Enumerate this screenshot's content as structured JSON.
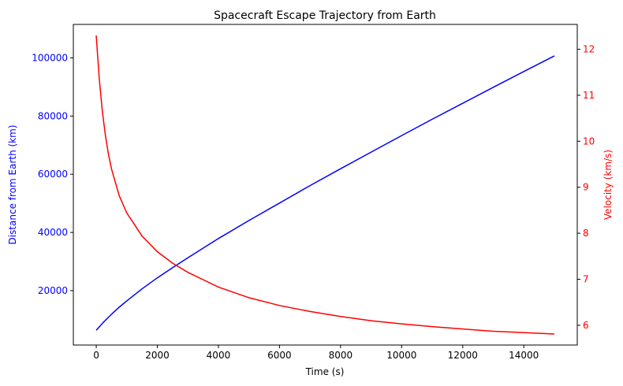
{
  "chart_data": {
    "type": "line",
    "title": "Spacecraft Escape Trajectory from Earth",
    "xlabel": "Time (s)",
    "xlim": [
      -750,
      15750
    ],
    "xticks": [
      0,
      2000,
      4000,
      6000,
      8000,
      10000,
      12000,
      14000
    ],
    "grid": false,
    "axes": {
      "left": {
        "label": "Distance from Earth (km)",
        "color": "#0000ff",
        "ylim": [
          1300,
          111500
        ],
        "ticks": [
          20000,
          40000,
          60000,
          80000,
          100000
        ]
      },
      "right": {
        "label": "Velocity (km/s)",
        "color": "#ff0000",
        "ylim": [
          5.57,
          12.54
        ],
        "ticks": [
          6,
          7,
          8,
          9,
          10,
          11,
          12
        ]
      }
    },
    "series": [
      {
        "axis": "left",
        "color": "#0000ff",
        "x": [
          0,
          250,
          500,
          750,
          1000,
          1500,
          2000,
          2500,
          3000,
          4000,
          5000,
          6000,
          7000,
          8000,
          9000,
          10000,
          11000,
          12000,
          13000,
          14000,
          15000
        ],
        "y": [
          6400,
          9300,
          11900,
          14300,
          16500,
          20600,
          24400,
          27900,
          31300,
          37900,
          44100,
          50100,
          56100,
          61900,
          67600,
          73300,
          78900,
          84400,
          89900,
          95300,
          100700
        ]
      },
      {
        "axis": "right",
        "color": "#ff0000",
        "x": [
          0,
          100,
          200,
          300,
          400,
          500,
          750,
          1000,
          1500,
          2000,
          2500,
          3000,
          4000,
          5000,
          6000,
          7000,
          8000,
          9000,
          10000,
          11000,
          12000,
          13000,
          14000,
          15000
        ],
        "y": [
          12.3,
          11.35,
          10.65,
          10.12,
          9.72,
          9.4,
          8.82,
          8.44,
          7.94,
          7.6,
          7.35,
          7.15,
          6.83,
          6.6,
          6.43,
          6.3,
          6.19,
          6.1,
          6.03,
          5.97,
          5.92,
          5.87,
          5.84,
          5.81
        ]
      }
    ]
  }
}
